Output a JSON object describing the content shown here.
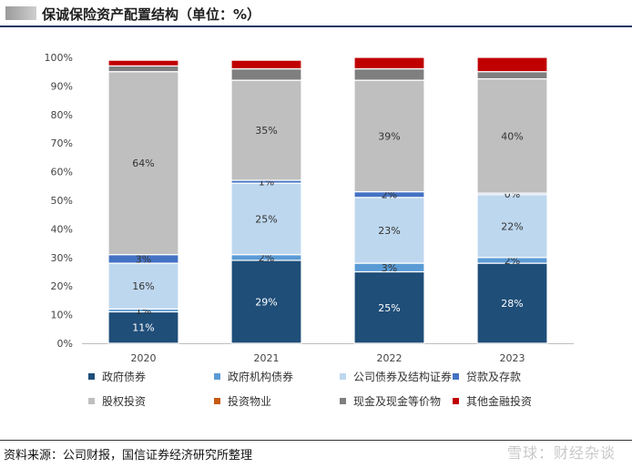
{
  "header": {
    "title": "保诚保险资产配置结构（单位：%）"
  },
  "footer": {
    "source": "资料来源：公司财报，国信证券经济研究所整理",
    "watermark": "雪球：财经杂谈"
  },
  "colors": {
    "gov_bonds": "#1f4e79",
    "gov_agency_bonds": "#5b9bd5",
    "corp_bonds": "#bdd7ee",
    "loans_deposits": "#4472c4",
    "equity": "#bfbfbf",
    "property": "#c55a11",
    "cash": "#7f7f7f",
    "other": "#c00000"
  },
  "chart_data": {
    "type": "bar",
    "stacked": true,
    "categories": [
      "2020",
      "2021",
      "2022",
      "2023"
    ],
    "ylim": [
      0,
      100
    ],
    "yticks": [
      "0%",
      "10%",
      "20%",
      "30%",
      "40%",
      "50%",
      "60%",
      "70%",
      "80%",
      "90%",
      "100%"
    ],
    "series": [
      {
        "name": "政府债券",
        "key": "gov_bonds",
        "values": [
          11,
          29,
          25,
          28
        ],
        "labels": [
          "11%",
          "29%",
          "25%",
          "28%"
        ]
      },
      {
        "name": "政府机构债券",
        "key": "gov_agency_bonds",
        "values": [
          1,
          2,
          3,
          2
        ],
        "labels": [
          "1%",
          "2%",
          "3%",
          "2%"
        ]
      },
      {
        "name": "公司债券及结构证券",
        "key": "corp_bonds",
        "values": [
          16,
          25,
          23,
          22
        ],
        "labels": [
          "16%",
          "25%",
          "23%",
          "22%"
        ]
      },
      {
        "name": "贷款及存款",
        "key": "loans_deposits",
        "values": [
          3,
          1,
          2,
          0.5
        ],
        "labels": [
          "3%",
          "1%",
          "2%",
          "0%"
        ]
      },
      {
        "name": "股权投资",
        "key": "equity",
        "values": [
          64,
          35,
          39,
          40
        ],
        "labels": [
          "64%",
          "35%",
          "39%",
          "40%"
        ]
      },
      {
        "name": "投资物业",
        "key": "property",
        "values": [
          0,
          0,
          0,
          0
        ],
        "labels": [
          "",
          "",
          "",
          ""
        ]
      },
      {
        "name": "现金及现金等价物",
        "key": "cash",
        "values": [
          2,
          4,
          4,
          2.5
        ],
        "labels": [
          "",
          "",
          "",
          ""
        ]
      },
      {
        "name": "其他金融投资",
        "key": "other",
        "values": [
          2,
          3,
          4,
          5
        ],
        "labels": [
          "",
          "",
          "",
          ""
        ]
      }
    ],
    "legend_position": "bottom"
  }
}
